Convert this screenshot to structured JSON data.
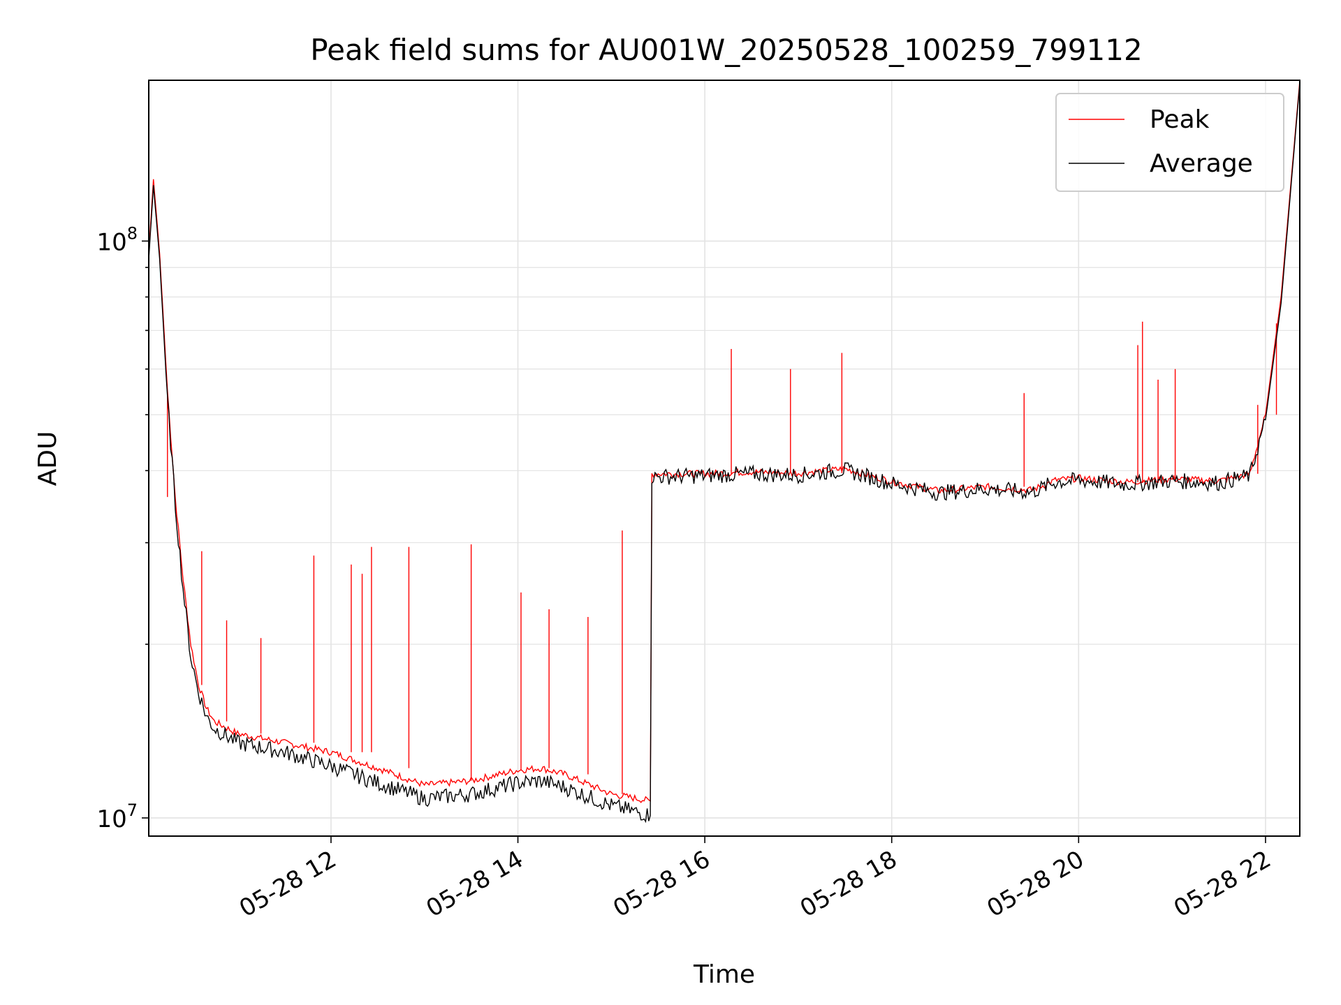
{
  "chart_data": {
    "type": "line",
    "title": "Peak field sums for AU001W_20250528_100259_799112",
    "xlabel": "Time",
    "ylabel": "ADU",
    "yscale": "log",
    "xlim": [
      "2025-05-28 10:03",
      "2025-05-28 22:22"
    ],
    "ylim": [
      9300000,
      190000000
    ],
    "x_ticks": [
      {
        "value": "2025-05-28 12:00",
        "label": "05-28 12"
      },
      {
        "value": "2025-05-28 14:00",
        "label": "05-28 14"
      },
      {
        "value": "2025-05-28 16:00",
        "label": "05-28 16"
      },
      {
        "value": "2025-05-28 18:00",
        "label": "05-28 18"
      },
      {
        "value": "2025-05-28 20:00",
        "label": "05-28 20"
      },
      {
        "value": "2025-05-28 22:00",
        "label": "05-28 22"
      }
    ],
    "y_ticks": [
      {
        "value": 10000000,
        "base": "10",
        "exp": "7"
      },
      {
        "value": 100000000,
        "base": "10",
        "exp": "8"
      }
    ],
    "grid": true,
    "legend_position": "top-right",
    "series": [
      {
        "name": "Peak",
        "color": "#ff0000",
        "x": [
          "2025-05-28 10:03",
          "2025-05-28 10:06",
          "2025-05-28 10:10",
          "2025-05-28 10:15",
          "2025-05-28 10:20",
          "2025-05-28 10:25",
          "2025-05-28 10:30",
          "2025-05-28 10:35",
          "2025-05-28 10:40",
          "2025-05-28 10:45",
          "2025-05-28 11:00",
          "2025-05-28 11:30",
          "2025-05-28 12:00",
          "2025-05-28 12:30",
          "2025-05-28 13:00",
          "2025-05-28 13:30",
          "2025-05-28 14:00",
          "2025-05-28 14:15",
          "2025-05-28 14:30",
          "2025-05-28 15:00",
          "2025-05-28 15:25",
          "2025-05-28 15:26",
          "2025-05-28 16:00",
          "2025-05-28 16:30",
          "2025-05-28 17:00",
          "2025-05-28 17:30",
          "2025-05-28 18:00",
          "2025-05-28 18:30",
          "2025-05-28 19:00",
          "2025-05-28 19:30",
          "2025-05-28 19:45",
          "2025-05-28 20:00",
          "2025-05-28 20:30",
          "2025-05-28 21:00",
          "2025-05-28 21:30",
          "2025-05-28 21:50",
          "2025-05-28 22:00",
          "2025-05-28 22:10",
          "2025-05-28 22:22"
        ],
        "y": [
          95000000,
          128000000,
          95000000,
          55000000,
          36000000,
          26000000,
          20000000,
          17000000,
          15500000,
          14700000,
          14000000,
          13500000,
          13000000,
          12200000,
          11400000,
          11600000,
          12100000,
          12200000,
          11900000,
          11000000,
          10700000,
          39500000,
          39500000,
          39800000,
          39600000,
          40300000,
          38300000,
          36900000,
          37500000,
          37000000,
          38500000,
          38800000,
          38200000,
          38700000,
          38400000,
          39500000,
          50000000,
          80000000,
          190000000
        ],
        "spikes": [
          {
            "x": "2025-05-28 10:15",
            "y": 36000000
          },
          {
            "x": "2025-05-28 10:37",
            "y": 29000000
          },
          {
            "x": "2025-05-28 10:53",
            "y": 22000000
          },
          {
            "x": "2025-05-28 11:15",
            "y": 20500000
          },
          {
            "x": "2025-05-28 11:49",
            "y": 28500000
          },
          {
            "x": "2025-05-28 12:13",
            "y": 27500000
          },
          {
            "x": "2025-05-28 12:20",
            "y": 26500000
          },
          {
            "x": "2025-05-28 12:26",
            "y": 29500000
          },
          {
            "x": "2025-05-28 12:50",
            "y": 29500000
          },
          {
            "x": "2025-05-28 13:30",
            "y": 29800000
          },
          {
            "x": "2025-05-28 14:02",
            "y": 24600000
          },
          {
            "x": "2025-05-28 14:20",
            "y": 23000000
          },
          {
            "x": "2025-05-28 14:45",
            "y": 22300000
          },
          {
            "x": "2025-05-28 15:07",
            "y": 31500000
          },
          {
            "x": "2025-05-28 16:17",
            "y": 65000000
          },
          {
            "x": "2025-05-28 16:55",
            "y": 60000000
          },
          {
            "x": "2025-05-28 17:28",
            "y": 64000000
          },
          {
            "x": "2025-05-28 19:25",
            "y": 54500000
          },
          {
            "x": "2025-05-28 20:38",
            "y": 66000000
          },
          {
            "x": "2025-05-28 20:41",
            "y": 72500000
          },
          {
            "x": "2025-05-28 20:51",
            "y": 57500000
          },
          {
            "x": "2025-05-28 21:02",
            "y": 60000000
          },
          {
            "x": "2025-05-28 21:55",
            "y": 52000000
          },
          {
            "x": "2025-05-28 22:07",
            "y": 72000000
          }
        ]
      },
      {
        "name": "Average",
        "color": "#000000",
        "x": [
          "2025-05-28 10:03",
          "2025-05-28 10:06",
          "2025-05-28 10:10",
          "2025-05-28 10:15",
          "2025-05-28 10:20",
          "2025-05-28 10:25",
          "2025-05-28 10:30",
          "2025-05-28 10:35",
          "2025-05-28 10:40",
          "2025-05-28 10:45",
          "2025-05-28 11:00",
          "2025-05-28 11:30",
          "2025-05-28 12:00",
          "2025-05-28 12:30",
          "2025-05-28 13:00",
          "2025-05-28 13:30",
          "2025-05-28 14:00",
          "2025-05-28 14:15",
          "2025-05-28 14:30",
          "2025-05-28 15:00",
          "2025-05-28 15:25",
          "2025-05-28 15:26",
          "2025-05-28 16:00",
          "2025-05-28 16:30",
          "2025-05-28 17:00",
          "2025-05-28 17:30",
          "2025-05-28 18:00",
          "2025-05-28 18:30",
          "2025-05-28 19:00",
          "2025-05-28 19:30",
          "2025-05-28 19:45",
          "2025-05-28 20:00",
          "2025-05-28 20:30",
          "2025-05-28 21:00",
          "2025-05-28 21:30",
          "2025-05-28 21:50",
          "2025-05-28 22:00",
          "2025-05-28 22:10",
          "2025-05-28 22:22"
        ],
        "y": [
          93000000,
          125000000,
          93000000,
          53000000,
          35000000,
          25000000,
          19000000,
          16500000,
          15000000,
          14300000,
          13500000,
          13000000,
          12300000,
          11500000,
          10800000,
          11000000,
          11500000,
          11600000,
          11300000,
          10500000,
          10100000,
          39000000,
          39200000,
          39500000,
          39300000,
          40100000,
          38000000,
          36600000,
          37200000,
          36700000,
          38200000,
          38500000,
          37900000,
          38400000,
          38100000,
          39200000,
          49000000,
          78000000,
          188000000
        ]
      }
    ]
  }
}
